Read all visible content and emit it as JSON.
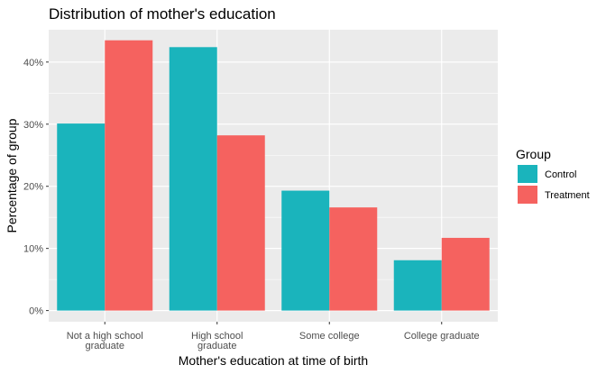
{
  "chart_data": {
    "type": "bar",
    "title": "Distribution of mother's education",
    "xlabel": "Mother's education at time of birth",
    "ylabel": "Percentage of group",
    "categories": [
      [
        "Not a high school",
        "graduate"
      ],
      [
        "High school",
        "graduate"
      ],
      [
        "Some college"
      ],
      [
        "College graduate"
      ]
    ],
    "series": [
      {
        "name": "Control",
        "values": [
          30.1,
          42.4,
          19.3,
          8.1
        ],
        "color": "#1AB4BC"
      },
      {
        "name": "Treatment",
        "values": [
          43.5,
          28.2,
          16.6,
          11.7
        ],
        "color": "#F5625F"
      }
    ],
    "ylim": [
      -1.8,
      45.2
    ],
    "yticks": [
      0,
      10,
      20,
      30,
      40
    ],
    "ytick_labels": [
      "0%",
      "10%",
      "20%",
      "30%",
      "40%"
    ],
    "grid": true,
    "legend": {
      "title": "Group",
      "position": "right"
    },
    "panel_background": "#EBEBEB",
    "grid_color": "#FFFFFF"
  }
}
